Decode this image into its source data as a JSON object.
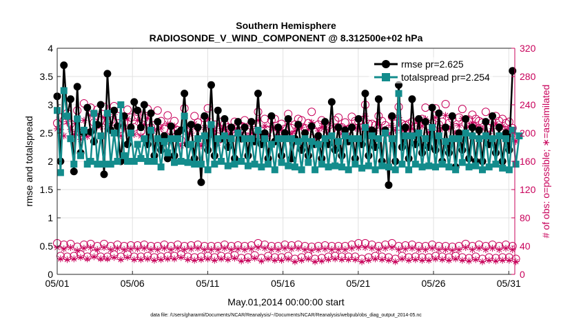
{
  "chart_data": {
    "type": "line",
    "title": "Southern Hemisphere",
    "subtitle": "RADIOSONDE_V_WIND_COMPONENT @ 8.312500e+02 hPa",
    "xlabel": "May.01,2014 00:00:00 start",
    "ylabel": "rmse and totalspread",
    "y2label": "# of obs: o=possible; ∗=assimilated",
    "footnote": "data file: /Users/gharamti/Documents/NCAR/Reanalysis/~/Documents/NCAR/Reanalysis/webpub/obs_diag_output_2014-05.nc",
    "xlim": [
      1,
      31.4
    ],
    "ylim": [
      0,
      4
    ],
    "y2lim": [
      0,
      320
    ],
    "xticks": [
      1,
      6,
      11,
      16,
      21,
      26,
      31
    ],
    "xticklabels": [
      "05/01",
      "05/06",
      "05/11",
      "05/16",
      "05/21",
      "05/26",
      "05/31"
    ],
    "yticks": [
      0,
      0.5,
      1,
      1.5,
      2,
      2.5,
      3,
      3.5,
      4
    ],
    "yticklabels": [
      "0",
      "0.5",
      "1",
      "1.5",
      "2",
      "2.5",
      "3",
      "3.5",
      "4"
    ],
    "y2ticks": [
      0,
      40,
      80,
      120,
      160,
      200,
      240,
      280,
      320
    ],
    "y2ticklabels": [
      "0",
      "40",
      "80",
      "120",
      "160",
      "200",
      "240",
      "280",
      "320"
    ],
    "grid": true,
    "legend": {
      "placement": "top-right",
      "entries": [
        "rmse pr=2.625",
        "totalspread pr=2.254"
      ]
    },
    "series": [
      {
        "name": "rmse pr=2.625",
        "color": "#000000",
        "axis": "left",
        "values": [
          3.15,
          2.0,
          3.7,
          2.8,
          3.1,
          1.82,
          3.32,
          2.15,
          2.5,
          2.95,
          2.52,
          2.35,
          2.65,
          3.0,
          1.77,
          3.55,
          2.55,
          2.9,
          2.62,
          2.0,
          2.8,
          2.3,
          2.6,
          3.05,
          2.9,
          2.6,
          3.0,
          2.3,
          2.85,
          2.1,
          2.7,
          2.2,
          2.45,
          2.05,
          2.62,
          2.1,
          2.5,
          2.55,
          3.2,
          2.3,
          2.65,
          2.05,
          2.6,
          1.63,
          2.8,
          2.2,
          3.35,
          2.1,
          2.9,
          2.4,
          2.75,
          2.25,
          2.6,
          2.05,
          2.7,
          2.4,
          2.6,
          2.1,
          2.7,
          2.35,
          3.2,
          2.3,
          2.5,
          2.05,
          2.8,
          2.35,
          2.6,
          2.1,
          2.5,
          2.75,
          2.05,
          2.4,
          2.65,
          2.2,
          2.5,
          2.1,
          2.62,
          2.3,
          2.45,
          2.05,
          2.7,
          2.3,
          3.05,
          2.2,
          2.6,
          2.1,
          2.55,
          2.35,
          2.6,
          2.05,
          2.75,
          2.3,
          3.2,
          2.1,
          2.55,
          2.25,
          3.1,
          2.0,
          2.55,
          1.58,
          2.8,
          2.0,
          3.35,
          2.25,
          2.6,
          2.05,
          3.1,
          2.3,
          2.75,
          2.15,
          2.7,
          2.25,
          2.95,
          2.2,
          2.85,
          2.0,
          2.6,
          2.15,
          2.8,
          1.9,
          2.5,
          2.2,
          2.75,
          2.05,
          2.6,
          2.0,
          2.55,
          2.0,
          2.7,
          2.3,
          2.8,
          2.15,
          2.6,
          2.0,
          2.5,
          2.2,
          3.6
        ],
        "marker": "filled-circle"
      },
      {
        "name": "totalspread pr=2.254",
        "color": "#138c8c",
        "axis": "left",
        "values": [
          2.9,
          1.8,
          3.25,
          2.8,
          2.4,
          1.95,
          2.75,
          2.1,
          2.55,
          1.95,
          2.0,
          2.85,
          1.95,
          2.45,
          1.95,
          2.85,
          1.95,
          2.5,
          2.0,
          3.0,
          2.1,
          2.0,
          2.5,
          2.0,
          2.3,
          2.05,
          2.4,
          2.0,
          2.55,
          2.0,
          2.4,
          1.9,
          2.35,
          2.15,
          2.4,
          1.98,
          2.4,
          2.0,
          2.8,
          1.98,
          2.3,
          1.95,
          2.4,
          1.95,
          2.45,
          1.85,
          2.65,
          1.95,
          2.4,
          2.0,
          2.45,
          1.92,
          2.4,
          1.95,
          2.5,
          2.0,
          2.4,
          1.92,
          2.4,
          1.95,
          2.55,
          1.9,
          2.4,
          1.95,
          2.3,
          1.85,
          2.4,
          1.98,
          2.4,
          1.92,
          2.4,
          1.9,
          2.35,
          1.85,
          2.4,
          1.98,
          2.35,
          1.85,
          2.3,
          1.95,
          2.4,
          1.9,
          2.45,
          1.92,
          2.35,
          1.9,
          2.45,
          1.85,
          2.4,
          1.95,
          2.4,
          1.88,
          2.6,
          1.92,
          2.45,
          1.85,
          2.4,
          1.92,
          2.5,
          1.9,
          2.4,
          1.85,
          3.2,
          1.95,
          2.45,
          1.85,
          2.45,
          1.95,
          2.5,
          1.9,
          2.4,
          1.92,
          2.6,
          1.9,
          2.45,
          1.95,
          2.35,
          1.9,
          2.4,
          1.85,
          2.4,
          1.98,
          2.5,
          1.9,
          2.45,
          1.92,
          2.4,
          1.85,
          2.45,
          1.9,
          2.4,
          1.95,
          2.45,
          1.88,
          2.4,
          1.85,
          2.55,
          1.95,
          2.45
        ],
        "marker": "filled-square"
      },
      {
        "name": "obs possible",
        "color": "#c8005a",
        "axis": "right",
        "marker": "open-circle",
        "values": [
          214,
          222,
          218,
          228,
          213,
          208,
          232,
          200,
          242,
          200,
          236,
          215,
          233,
          218,
          237,
          215,
          218,
          238,
          224,
          206,
          215,
          233,
          222,
          208,
          230,
          202,
          222,
          234,
          208,
          211,
          232,
          217,
          206,
          225,
          203,
          217,
          204,
          190,
          235,
          206,
          210,
          224,
          215,
          190,
          221,
          235,
          208,
          212,
          195,
          216,
          213,
          208,
          205,
          216,
          212,
          210,
          218,
          205,
          210,
          204,
          230,
          203,
          220,
          204,
          218,
          220,
          207,
          213,
          206,
          227,
          207,
          212,
          220,
          218,
          207,
          214,
          230,
          201,
          212,
          218,
          214,
          210,
          205,
          218,
          222,
          208,
          215,
          205,
          223,
          217,
          216,
          218,
          240,
          213,
          213,
          211,
          224,
          217,
          211,
          206,
          223,
          213,
          237,
          213,
          211,
          213,
          216,
          209,
          219,
          220,
          236,
          210,
          214,
          235,
          212,
          216,
          241,
          214,
          220,
          208,
          222,
          234,
          213,
          219,
          226,
          220,
          217,
          215,
          230,
          207,
          215,
          224,
          217,
          220,
          214,
          216,
          207,
          195
        ],
        "values_low": [
          44,
          26,
          42,
          25,
          43,
          26,
          39,
          28,
          42,
          25,
          43,
          29,
          40,
          25,
          43,
          25,
          40,
          28,
          42,
          25,
          40,
          28,
          41,
          25,
          41,
          25,
          42,
          26,
          40,
          24,
          40,
          25,
          42,
          26,
          40,
          26,
          42,
          28,
          40,
          25,
          41,
          24,
          42,
          25,
          40,
          26,
          40,
          24,
          40,
          26,
          42,
          25,
          40,
          27,
          41,
          23,
          40,
          24,
          41,
          27,
          44,
          23,
          42,
          26,
          40,
          24,
          40,
          24,
          42,
          26,
          41,
          22,
          42,
          24,
          40,
          26,
          39,
          22,
          40,
          23,
          41,
          25,
          40,
          26,
          40,
          25,
          40,
          25,
          42,
          25,
          44,
          22,
          44,
          24,
          42,
          26,
          40,
          25,
          42,
          24,
          44,
          22,
          40,
          26,
          41,
          24,
          42,
          25,
          40,
          24,
          40,
          24,
          42,
          26,
          40,
          25,
          40,
          24,
          39,
          26,
          40,
          24,
          43,
          23,
          40,
          25,
          42,
          22,
          40,
          24,
          42,
          23,
          40,
          24,
          42,
          24,
          40,
          22
        ]
      },
      {
        "name": "obs assimilated",
        "color": "#c8005a",
        "axis": "right",
        "marker": "asterisk",
        "values": [
          206,
          205,
          196,
          216,
          205,
          198,
          215,
          191,
          218,
          195,
          225,
          205,
          226,
          209,
          222,
          206,
          211,
          226,
          212,
          196,
          206,
          220,
          209,
          198,
          218,
          196,
          212,
          221,
          199,
          204,
          216,
          207,
          195,
          213,
          195,
          210,
          196,
          182,
          225,
          198,
          200,
          213,
          205,
          182,
          208,
          220,
          198,
          203,
          186,
          206,
          205,
          198,
          197,
          205,
          203,
          200,
          210,
          196,
          200,
          195,
          218,
          195,
          210,
          196,
          208,
          208,
          198,
          205,
          197,
          216,
          199,
          203,
          208,
          208,
          198,
          205,
          215,
          192,
          203,
          208,
          205,
          200,
          196,
          208,
          210,
          199,
          206,
          196,
          211,
          207,
          206,
          206,
          224,
          204,
          204,
          203,
          212,
          206,
          202,
          198,
          211,
          204,
          222,
          204,
          203,
          205,
          206,
          201,
          210,
          210,
          220,
          201,
          204,
          222,
          203,
          206,
          225,
          206,
          210,
          200,
          211,
          221,
          204,
          209,
          214,
          210,
          207,
          206,
          216,
          199,
          206,
          213,
          207,
          210,
          205,
          206,
          198,
          188
        ],
        "values_low": [
          38,
          22,
          36,
          21,
          38,
          22,
          34,
          24,
          37,
          22,
          38,
          25,
          35,
          22,
          38,
          22,
          35,
          24,
          37,
          21,
          35,
          24,
          36,
          21,
          36,
          21,
          37,
          22,
          35,
          20,
          35,
          21,
          37,
          22,
          35,
          22,
          37,
          24,
          35,
          21,
          36,
          20,
          37,
          21,
          35,
          22,
          35,
          20,
          35,
          22,
          37,
          21,
          35,
          23,
          36,
          19,
          35,
          20,
          36,
          23,
          38,
          19,
          37,
          22,
          35,
          20,
          35,
          20,
          37,
          22,
          36,
          18,
          37,
          20,
          35,
          22,
          34,
          18,
          35,
          19,
          36,
          21,
          35,
          22,
          35,
          21,
          35,
          21,
          37,
          21,
          38,
          18,
          38,
          20,
          37,
          22,
          35,
          21,
          37,
          20,
          38,
          18,
          35,
          22,
          36,
          20,
          37,
          21,
          35,
          20,
          35,
          20,
          37,
          22,
          35,
          21,
          35,
          20,
          34,
          22,
          35,
          20,
          38,
          19,
          35,
          21,
          37,
          18,
          35,
          20,
          37,
          19,
          35,
          20,
          37,
          20,
          35,
          18
        ]
      }
    ]
  }
}
